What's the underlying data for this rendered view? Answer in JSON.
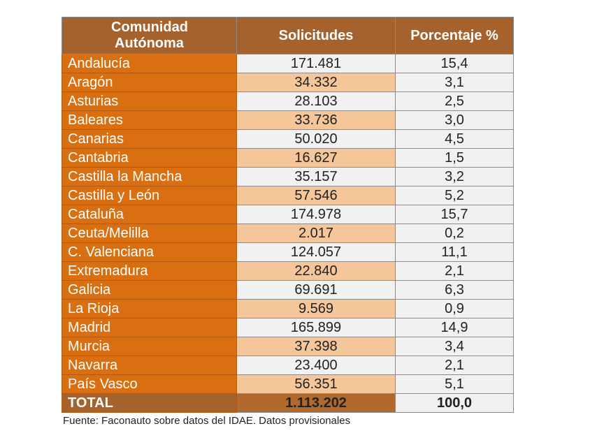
{
  "colors": {
    "header": "#a6622c",
    "name_column": "#d96f10",
    "alt_row": "#f5c69a",
    "light_cell": "#f1f1f1"
  },
  "headers": {
    "community": "Comunidad Autónoma",
    "requests": "Solicitudes",
    "percent": "Porcentaje %"
  },
  "rows": [
    {
      "name": "Andalucía",
      "requests": "171.481",
      "percent": "15,4"
    },
    {
      "name": "Aragón",
      "requests": "34.332",
      "percent": "3,1"
    },
    {
      "name": "Asturias",
      "requests": "28.103",
      "percent": "2,5"
    },
    {
      "name": "Baleares",
      "requests": "33.736",
      "percent": "3,0"
    },
    {
      "name": "Canarias",
      "requests": "50.020",
      "percent": "4,5"
    },
    {
      "name": "Cantabria",
      "requests": "16.627",
      "percent": "1,5"
    },
    {
      "name": "Castilla la Mancha",
      "requests": "35.157",
      "percent": "3,2"
    },
    {
      "name": "Castilla y León",
      "requests": "57.546",
      "percent": "5,2"
    },
    {
      "name": "Cataluña",
      "requests": "174.978",
      "percent": "15,7"
    },
    {
      "name": "Ceuta/Melilla",
      "requests": "2.017",
      "percent": "0,2"
    },
    {
      "name": "C. Valenciana",
      "requests": "124.057",
      "percent": "11,1"
    },
    {
      "name": "Extremadura",
      "requests": "22.840",
      "percent": "2,1"
    },
    {
      "name": "Galicia",
      "requests": "69.691",
      "percent": "6,3"
    },
    {
      "name": "La Rioja",
      "requests": "9.569",
      "percent": "0,9"
    },
    {
      "name": "Madrid",
      "requests": "165.899",
      "percent": "14,9"
    },
    {
      "name": "Murcia",
      "requests": "37.398",
      "percent": "3,4"
    },
    {
      "name": "Navarra",
      "requests": "23.400",
      "percent": "2,1"
    },
    {
      "name": "País Vasco",
      "requests": "56.351",
      "percent": "5,1"
    }
  ],
  "total": {
    "name": "TOTAL",
    "requests": "1.113.202",
    "percent": "100,0"
  },
  "source": "Fuente: Faconauto sobre datos del IDAE. Datos provisionales"
}
